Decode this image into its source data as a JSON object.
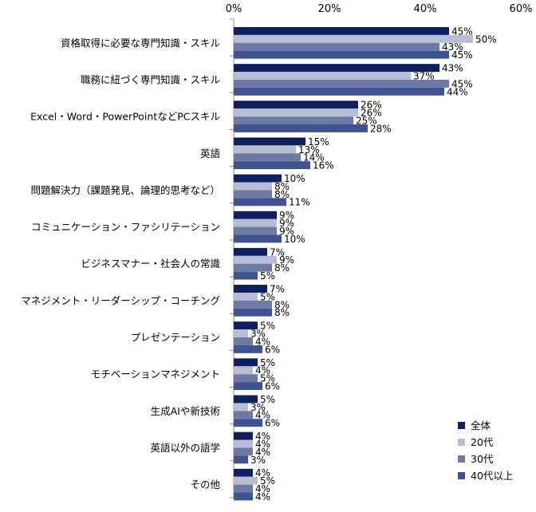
{
  "chart_data": {
    "type": "bar",
    "orientation": "horizontal",
    "title": "",
    "xlabel": "",
    "ylabel": "",
    "xlim": [
      0,
      60
    ],
    "x_ticks": [
      "0%",
      "20%",
      "40%",
      "60%"
    ],
    "x_tick_values": [
      0,
      20,
      40,
      60
    ],
    "value_suffix": "%",
    "grid": false,
    "legend_position": "bottom-right",
    "categories": [
      "資格取得に必要な専門知識・スキル",
      "職務に紐づく専門知識・スキル",
      "Excel・Word・PowerPointなどPCスキル",
      "英語",
      "問題解決力（課題発見、論理的思考など）",
      "コミュニケーション・ファシリテーション",
      "ビジネスマナー・社会人の常識",
      "マネジメント・リーダーシップ・コーチング",
      "プレゼンテーション",
      "モチベーションマネジメント",
      "生成AIや新技術",
      "英語以外の語学",
      "その他"
    ],
    "series": [
      {
        "name": "全体",
        "color": "#0d1f5e",
        "values": [
          45,
          43,
          26,
          15,
          10,
          9,
          7,
          7,
          5,
          5,
          5,
          4,
          4
        ]
      },
      {
        "name": "20代",
        "color": "#b7bdd4",
        "values": [
          50,
          37,
          26,
          13,
          8,
          9,
          9,
          5,
          3,
          4,
          3,
          4,
          5
        ]
      },
      {
        "name": "30代",
        "color": "#6e7aa5",
        "values": [
          43,
          45,
          25,
          14,
          8,
          9,
          8,
          8,
          4,
          5,
          4,
          4,
          4
        ]
      },
      {
        "name": "40代以上",
        "color": "#3f5390",
        "values": [
          45,
          44,
          28,
          16,
          11,
          10,
          5,
          8,
          6,
          6,
          6,
          3,
          4
        ]
      }
    ]
  }
}
